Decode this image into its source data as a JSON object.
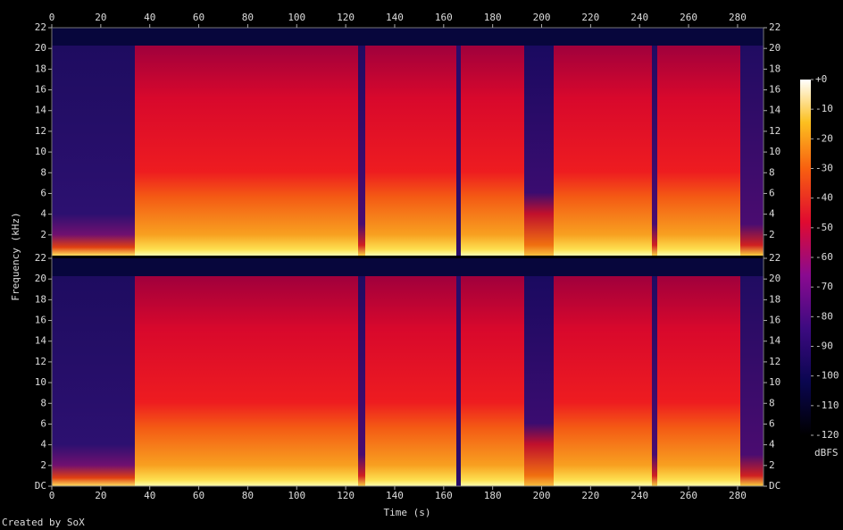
{
  "chart_data": [
    {
      "type": "spectrogram",
      "ylabel": "Frequency (kHz)",
      "xlim": [
        0,
        290.6
      ],
      "xticks": [
        0,
        20,
        40,
        60,
        80,
        100,
        120,
        140,
        160,
        180,
        200,
        220,
        240,
        260,
        280
      ],
      "ylim": [
        0,
        22
      ],
      "yticks": [
        2,
        4,
        6,
        8,
        10,
        12,
        14,
        16,
        18,
        20,
        22
      ]
    },
    {
      "type": "spectrogram",
      "xlabel": "Time (s)",
      "xlim": [
        0,
        290.6
      ],
      "xticks": [
        0,
        20,
        40,
        60,
        80,
        100,
        120,
        140,
        160,
        180,
        200,
        220,
        240,
        260,
        280
      ],
      "ylim": [
        0,
        22
      ],
      "yticks": [
        {
          "value": 0,
          "label": "DC"
        },
        2,
        4,
        6,
        8,
        10,
        12,
        14,
        16,
        18,
        20,
        22
      ]
    }
  ],
  "colorbar": {
    "label": "dBFS",
    "lim": [
      -120,
      0
    ],
    "ticks": [
      {
        "value": 0,
        "label": "+0"
      },
      -10,
      -20,
      -30,
      -40,
      -50,
      -60,
      -70,
      -80,
      -90,
      -100,
      -110,
      -120
    ]
  },
  "footer": "Created by SoX"
}
